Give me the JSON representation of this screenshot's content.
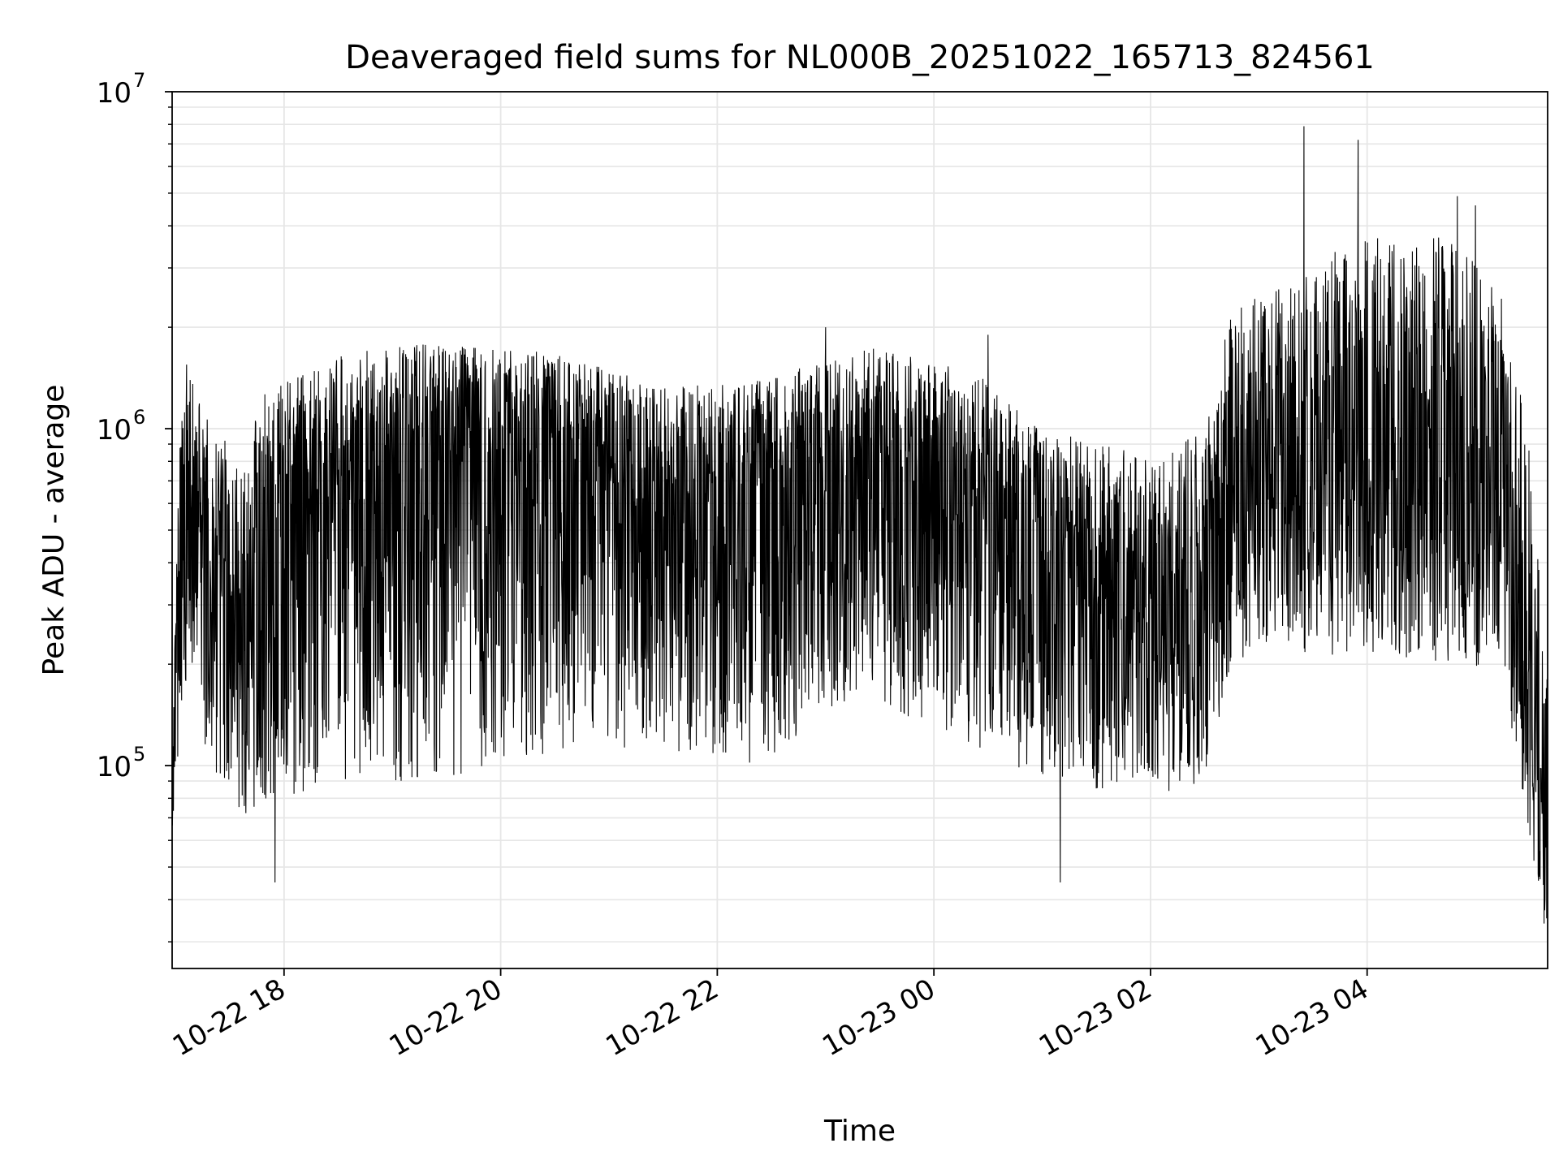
{
  "chart_data": {
    "type": "line",
    "title": "Deaveraged field sums for NL000B_20251022_165713_824561",
    "xlabel": "Time",
    "ylabel": "Peak ADU - average",
    "yscale": "log",
    "ylim": [
      25000,
      10000000
    ],
    "xlim": [
      "2025-10-22T16:58",
      "2025-10-23T05:40"
    ],
    "grid": true,
    "legend": "none",
    "line_color": "#000000",
    "grid_color": "#e6e6e6",
    "x_ticks": [
      {
        "t": "2025-10-22T18:00",
        "label": "10-22 18"
      },
      {
        "t": "2025-10-22T20:00",
        "label": "10-22 20"
      },
      {
        "t": "2025-10-22T22:00",
        "label": "10-22 22"
      },
      {
        "t": "2025-10-23T00:00",
        "label": "10-23 00"
      },
      {
        "t": "2025-10-23T02:00",
        "label": "10-23 02"
      },
      {
        "t": "2025-10-23T04:00",
        "label": "10-23 04"
      }
    ],
    "y_ticks": [
      {
        "value": 100000,
        "base": "10",
        "exp": "5"
      },
      {
        "value": 1000000,
        "base": "10",
        "exp": "6"
      },
      {
        "value": 10000000,
        "base": "10",
        "exp": "7"
      }
    ],
    "series": [
      {
        "trend": [
          [
            "2025-10-22T16:58",
            70000,
            60000,
            95000
          ],
          [
            "2025-10-22T17:02",
            500000,
            120000,
            1000000
          ],
          [
            "2025-10-22T17:08",
            600000,
            200000,
            1500000
          ],
          [
            "2025-10-22T17:20",
            400000,
            80000,
            1000000
          ],
          [
            "2025-10-22T17:35",
            350000,
            70000,
            850000
          ],
          [
            "2025-10-22T17:50",
            450000,
            75000,
            1300000
          ],
          [
            "2025-10-22T18:05",
            550000,
            80000,
            1400000
          ],
          [
            "2025-10-22T18:30",
            650000,
            90000,
            1650000
          ],
          [
            "2025-10-22T19:00",
            750000,
            90000,
            1750000
          ],
          [
            "2025-10-22T19:30",
            780000,
            90000,
            1800000
          ],
          [
            "2025-10-22T20:00",
            750000,
            100000,
            1750000
          ],
          [
            "2025-10-22T20:30",
            720000,
            110000,
            1700000
          ],
          [
            "2025-10-22T21:00",
            680000,
            110000,
            1500000
          ],
          [
            "2025-10-22T21:30",
            650000,
            110000,
            1350000
          ],
          [
            "2025-10-22T22:00",
            600000,
            100000,
            1350000
          ],
          [
            "2025-10-22T22:30",
            640000,
            100000,
            1450000
          ],
          [
            "2025-10-22T23:00",
            700000,
            150000,
            1600000
          ],
          [
            "2025-10-22T23:30",
            720000,
            150000,
            1750000
          ],
          [
            "2025-10-23T00:00",
            640000,
            130000,
            1600000
          ],
          [
            "2025-10-23T00:30",
            500000,
            110000,
            1400000
          ],
          [
            "2025-10-23T01:00",
            420000,
            90000,
            1000000
          ],
          [
            "2025-10-23T01:30",
            380000,
            85000,
            950000
          ],
          [
            "2025-10-23T02:00",
            300000,
            80000,
            800000
          ],
          [
            "2025-10-23T02:30",
            350000,
            90000,
            1000000
          ],
          [
            "2025-10-23T02:45",
            600000,
            200000,
            2300000
          ],
          [
            "2025-10-23T03:15",
            750000,
            220000,
            2800000
          ],
          [
            "2025-10-23T03:45",
            800000,
            210000,
            3500000
          ],
          [
            "2025-10-23T04:15",
            850000,
            210000,
            3800000
          ],
          [
            "2025-10-23T04:45",
            800000,
            200000,
            3700000
          ],
          [
            "2025-10-23T05:15",
            700000,
            190000,
            2600000
          ],
          [
            "2025-10-23T05:30",
            250000,
            60000,
            900000
          ],
          [
            "2025-10-23T05:40",
            60000,
            33000,
            170000
          ]
        ],
        "peaks": [
          [
            "2025-10-22T17:06",
            1550000
          ],
          [
            "2025-10-22T17:55",
            45000
          ],
          [
            "2025-10-22T23:00",
            2000000
          ],
          [
            "2025-10-23T00:30",
            1900000
          ],
          [
            "2025-10-23T01:10",
            45000
          ],
          [
            "2025-10-23T03:25",
            7900000
          ],
          [
            "2025-10-23T03:55",
            7200000
          ],
          [
            "2025-10-23T04:50",
            4900000
          ],
          [
            "2025-10-23T05:00",
            4600000
          ],
          [
            "2025-10-23T05:38",
            34000
          ]
        ]
      }
    ]
  }
}
